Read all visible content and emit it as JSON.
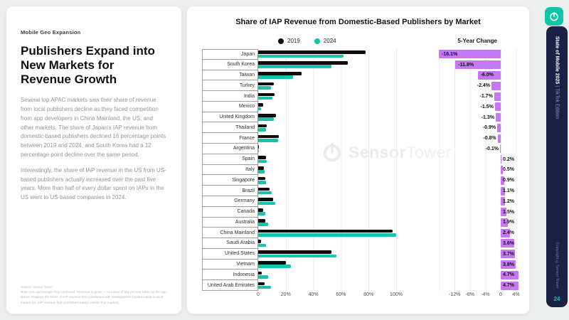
{
  "left_panel": {
    "eyebrow": "Mobile Geo Expansion",
    "title": "Publishers Expand into New Markets for Revenue Growth",
    "paragraphs": [
      "Several top APAC markets saw their share of revenue from local publishers decline as they faced competition from app developers in China Mainland, the US, and other markets. The share of Japan's IAP revenue from domestic-based publishers declined 16 percentage points between 2019 and 2024, and South Korea had a 12 percentage point decline over the same period.",
      "Interestingly, the share of IAP revenue in the US from US-based publishers actually increased over the past five years. More than half of every dollar spent on IAPs in the US went to US-based companies in 2024."
    ],
    "source": "Source: Sensor Tower",
    "note": "Note: iOS and Google Play combined. Revenue is gross — inclusive of any percent taken by the app stores. Displays the share of IAP revenue from publishers with headquarters located inside in each market (vs. IAP revenue from publishers based outside that market)."
  },
  "sidebar": {
    "logo_icon": "sensor-tower-power-icon",
    "edition_bold": "State of Mobile 2025",
    "edition_sep": " | ",
    "edition_light": "TikTok Edition",
    "copyright": "Copyright ©Sensor Tower",
    "page_number": "24"
  },
  "colors": {
    "teal": "#16c3ab",
    "black_bar": "#0d0d0d",
    "purple": "#c678f2",
    "navy": "#1b2144",
    "logo_teal": "#0cc6a6"
  },
  "chart_data": {
    "type": "bar",
    "orientation": "horizontal",
    "title": "Share of IAP Revenue from Domestic-Based Publishers by Market",
    "change_header": "5-Year Change",
    "watermark": {
      "bold": "Sensor",
      "light": "Tower"
    },
    "legend": [
      {
        "label": "2019",
        "color": "#0d0d0d"
      },
      {
        "label": "2024",
        "color": "#16c3ab"
      }
    ],
    "categories": [
      "Japan",
      "South Korea",
      "Taiwan",
      "Turkey",
      "India",
      "Mexico",
      "United Kingdom",
      "Thailand",
      "France",
      "Argentina",
      "Spain",
      "Italy",
      "Singapore",
      "Brazil",
      "Germany",
      "Canada",
      "Australia",
      "China Mainland",
      "Saudi Arabia",
      "United States",
      "Vietnam",
      "Indonesia",
      "United Arab Emirates"
    ],
    "series": [
      {
        "name": "2019",
        "values": [
          77.8,
          65.0,
          31.5,
          11.5,
          12.0,
          3.8,
          12.8,
          6.4,
          15.0,
          0.6,
          5.8,
          4.3,
          5.0,
          8.5,
          11.0,
          3.5,
          5.2,
          97.6,
          2.0,
          53.0,
          20.0,
          2.5,
          4.6
        ]
      },
      {
        "name": "2024",
        "values": [
          61.7,
          53.2,
          25.5,
          9.1,
          10.3,
          2.3,
          11.5,
          5.5,
          14.2,
          0.5,
          6.0,
          4.8,
          5.9,
          9.6,
          12.2,
          5.0,
          7.1,
          100.0,
          5.6,
          56.7,
          23.8,
          7.2,
          9.3
        ]
      }
    ],
    "change_values": [
      -16.1,
      -11.8,
      -6.0,
      -2.4,
      -1.7,
      -1.5,
      -1.3,
      -0.9,
      -0.8,
      -0.1,
      0.2,
      0.5,
      0.9,
      1.1,
      1.2,
      1.5,
      1.9,
      2.4,
      3.6,
      3.7,
      3.8,
      4.7,
      4.7
    ],
    "xlabel": "",
    "ylabel": "",
    "xlim": [
      0,
      100
    ],
    "x_axis_ticks": [
      "0",
      "20%",
      "40%",
      "60%",
      "80%",
      "100%"
    ],
    "change_axis_ticks": [
      {
        "label": "-12%",
        "value": -12
      },
      {
        "label": "-8%",
        "value": -8
      },
      {
        "label": "-4%",
        "value": -4
      },
      {
        "label": "0",
        "value": 0
      },
      {
        "label": "4%",
        "value": 4
      }
    ],
    "change_xlim": [
      -16.8,
      5.0
    ],
    "grid": true,
    "legend_position": "top-left"
  }
}
